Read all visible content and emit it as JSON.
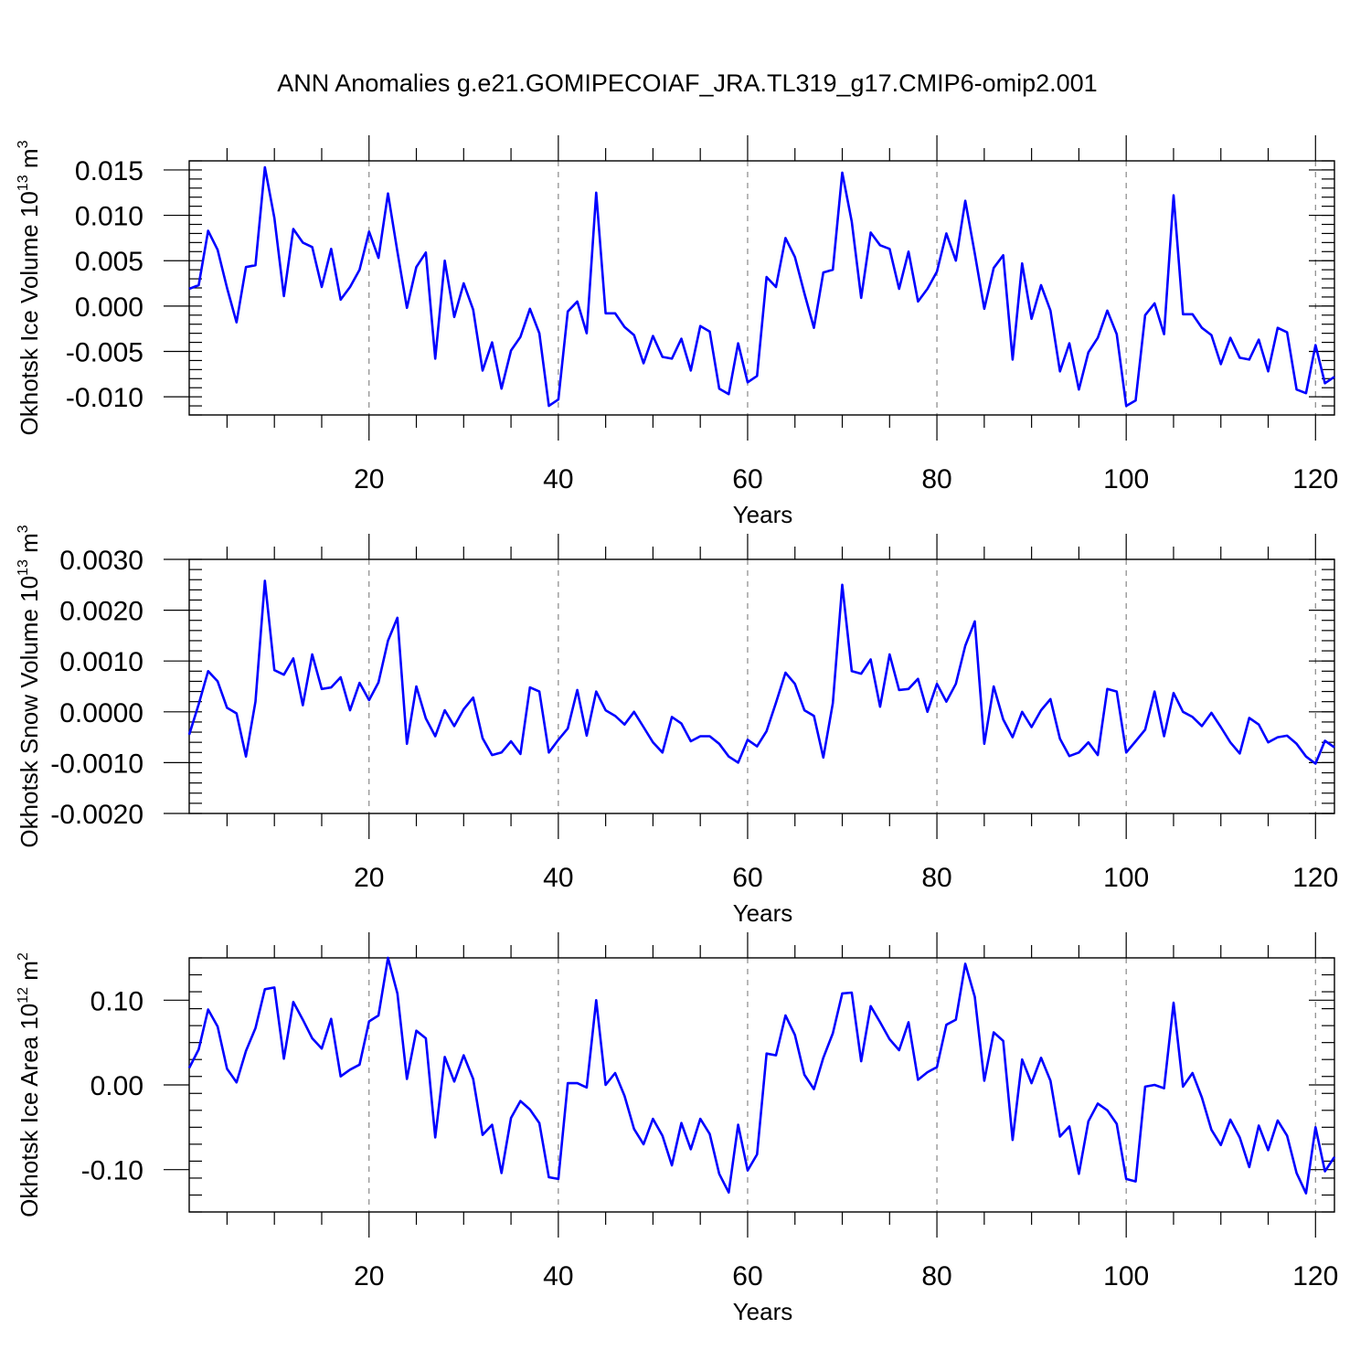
{
  "title": "ANN Anomalies g.e21.GOMIPECOIAF_JRA.TL319_g17.CMIP6-omip2.001",
  "colors": {
    "line": "#0000ff",
    "axis": "#000000",
    "grid": "#888888"
  },
  "chart_data": [
    {
      "type": "line",
      "ylabel": "Okhotsk Ice Volume 10",
      "ylabel_exp": "13",
      "ylabel_unit": " m",
      "ylabel_unit_exp": "3",
      "xlabel": "Years",
      "xlim": [
        1,
        122
      ],
      "ylim": [
        -0.012,
        0.016
      ],
      "x_ticks": [
        20,
        40,
        60,
        80,
        100,
        120
      ],
      "y_ticks": [
        -0.01,
        -0.005,
        0.0,
        0.005,
        0.01,
        0.015
      ],
      "y_tick_labels": [
        "-0.010",
        "-0.005",
        "0.000",
        "0.005",
        "0.010",
        "0.015"
      ],
      "y_minor_step": 0.001,
      "grid": "dashed vertical at major x ticks",
      "series": [
        {
          "values": [
            0.0019,
            0.0023,
            0.0083,
            0.0062,
            0.002,
            -0.0018,
            0.0043,
            0.0045,
            0.0153,
            0.0097,
            0.0011,
            0.0085,
            0.007,
            0.0065,
            0.0021,
            0.0063,
            0.0007,
            0.0021,
            0.004,
            0.0082,
            0.0053,
            0.0124,
            0.006,
            -0.0002,
            0.0043,
            0.0059,
            -0.0058,
            0.005,
            -0.0012,
            0.0025,
            -0.0004,
            -0.0071,
            -0.004,
            -0.0091,
            -0.0049,
            -0.0034,
            -0.0003,
            -0.003,
            -0.011,
            -0.0103,
            -0.0006,
            0.0005,
            -0.003,
            0.0125,
            -0.0008,
            -0.0008,
            -0.0023,
            -0.0032,
            -0.0063,
            -0.0033,
            -0.0056,
            -0.0058,
            -0.0036,
            -0.0071,
            -0.0022,
            -0.0028,
            -0.0091,
            -0.0097,
            -0.0041,
            -0.0084,
            -0.0077,
            0.0032,
            0.0021,
            0.0075,
            0.0054,
            0.0014,
            -0.0024,
            0.0037,
            0.004,
            0.0147,
            0.0093,
            0.0009,
            0.0081,
            0.0067,
            0.0063,
            0.0019,
            0.006,
            0.0005,
            0.0019,
            0.0038,
            0.008,
            0.005,
            0.0116,
            0.0058,
            -0.0003,
            0.0042,
            0.0056,
            -0.0059,
            0.0047,
            -0.0014,
            0.0023,
            -0.0005,
            -0.0072,
            -0.0041,
            -0.0092,
            -0.0051,
            -0.0035,
            -0.0005,
            -0.0031,
            -0.011,
            -0.0104,
            -0.001,
            0.0003,
            -0.0031,
            0.0122,
            -0.0009,
            -0.0009,
            -0.0024,
            -0.0032,
            -0.0064,
            -0.0035,
            -0.0057,
            -0.0059,
            -0.0037,
            -0.0072,
            -0.0024,
            -0.0029,
            -0.0092,
            -0.0096,
            -0.0043,
            -0.0085,
            -0.0078
          ]
        }
      ]
    },
    {
      "type": "line",
      "ylabel": "Okhotsk Snow Volume 10",
      "ylabel_exp": "13",
      "ylabel_unit": " m",
      "ylabel_unit_exp": "3",
      "xlabel": "Years",
      "xlim": [
        1,
        122
      ],
      "ylim": [
        -0.002,
        0.003
      ],
      "x_ticks": [
        20,
        40,
        60,
        80,
        100,
        120
      ],
      "y_ticks": [
        -0.002,
        -0.001,
        0.0,
        0.001,
        0.002,
        0.003
      ],
      "y_tick_labels": [
        "-0.0020",
        "-0.0010",
        "0.0000",
        "0.0010",
        "0.0020",
        "0.0030"
      ],
      "y_minor_step": 0.0002,
      "grid": "dashed vertical at major x ticks",
      "series": [
        {
          "values": [
            -0.00045,
            0.00015,
            0.0008,
            0.0006,
            8e-05,
            -3e-05,
            -0.00088,
            0.0002,
            0.00258,
            0.00082,
            0.00073,
            0.00105,
            0.00013,
            0.00113,
            0.00045,
            0.00048,
            0.00068,
            3e-05,
            0.00057,
            0.00023,
            0.00058,
            0.0014,
            0.00185,
            -0.00063,
            0.0005,
            -0.00013,
            -0.00048,
            3e-05,
            -0.00028,
            5e-05,
            0.00028,
            -0.00052,
            -0.00085,
            -0.0008,
            -0.00058,
            -0.00083,
            0.00048,
            0.0004,
            -0.0008,
            -0.00055,
            -0.00033,
            0.00043,
            -0.00047,
            0.0004,
            3e-05,
            -8e-05,
            -0.00025,
            0.0,
            -0.0003,
            -0.0006,
            -0.0008,
            -0.0001,
            -0.00023,
            -0.00058,
            -0.00048,
            -0.00048,
            -0.00063,
            -0.00088,
            -0.001,
            -0.00055,
            -0.00068,
            -0.00038,
            0.00018,
            0.00077,
            0.00055,
            3e-05,
            -8e-05,
            -0.0009,
            0.00017,
            0.0025,
            0.0008,
            0.00075,
            0.00103,
            0.0001,
            0.00113,
            0.00043,
            0.00045,
            0.00065,
            0.0,
            0.00055,
            0.0002,
            0.00055,
            0.0013,
            0.00178,
            -0.00063,
            0.0005,
            -0.00015,
            -0.0005,
            0.0,
            -0.0003,
            3e-05,
            0.00025,
            -0.00053,
            -0.00087,
            -0.0008,
            -0.0006,
            -0.00085,
            0.00045,
            0.0004,
            -0.0008,
            -0.00058,
            -0.00035,
            0.0004,
            -0.00048,
            0.00037,
            0.0,
            -0.0001,
            -0.00028,
            -2e-05,
            -0.0003,
            -0.0006,
            -0.00082,
            -0.00012,
            -0.00025,
            -0.0006,
            -0.0005,
            -0.00047,
            -0.00063,
            -0.00088,
            -0.00102,
            -0.00057,
            -0.0007
          ]
        }
      ]
    },
    {
      "type": "line",
      "ylabel": "Okhotsk Ice Area 10",
      "ylabel_exp": "12",
      "ylabel_unit": " m",
      "ylabel_unit_exp": "2",
      "xlabel": "Years",
      "xlim": [
        1,
        122
      ],
      "ylim": [
        -0.15,
        0.15
      ],
      "x_ticks": [
        20,
        40,
        60,
        80,
        100,
        120
      ],
      "y_ticks": [
        -0.1,
        0.0,
        0.1
      ],
      "y_tick_labels": [
        "-0.10",
        "0.00",
        "0.10"
      ],
      "y_minor_step": 0.02,
      "grid": "dashed vertical at major x ticks",
      "series": [
        {
          "values": [
            0.02,
            0.042,
            0.089,
            0.069,
            0.019,
            0.003,
            0.04,
            0.067,
            0.113,
            0.115,
            0.031,
            0.098,
            0.077,
            0.055,
            0.043,
            0.078,
            0.01,
            0.018,
            0.024,
            0.075,
            0.082,
            0.15,
            0.108,
            0.007,
            0.064,
            0.055,
            -0.062,
            0.033,
            0.004,
            0.035,
            0.007,
            -0.059,
            -0.047,
            -0.104,
            -0.039,
            -0.019,
            -0.029,
            -0.045,
            -0.109,
            -0.111,
            0.002,
            0.002,
            -0.003,
            0.1,
            0.0,
            0.014,
            -0.013,
            -0.052,
            -0.07,
            -0.04,
            -0.06,
            -0.095,
            -0.045,
            -0.076,
            -0.04,
            -0.058,
            -0.105,
            -0.127,
            -0.047,
            -0.101,
            -0.082,
            0.037,
            0.035,
            0.082,
            0.059,
            0.012,
            -0.005,
            0.032,
            0.061,
            0.108,
            0.109,
            0.028,
            0.093,
            0.074,
            0.054,
            0.041,
            0.074,
            0.006,
            0.015,
            0.021,
            0.071,
            0.077,
            0.143,
            0.104,
            0.005,
            0.062,
            0.052,
            -0.065,
            0.03,
            0.002,
            0.032,
            0.005,
            -0.061,
            -0.049,
            -0.105,
            -0.043,
            -0.022,
            -0.03,
            -0.046,
            -0.111,
            -0.114,
            -0.002,
            0.0,
            -0.004,
            0.097,
            -0.002,
            0.014,
            -0.015,
            -0.053,
            -0.071,
            -0.041,
            -0.062,
            -0.097,
            -0.048,
            -0.077,
            -0.042,
            -0.06,
            -0.104,
            -0.128,
            -0.05,
            -0.102,
            -0.085
          ]
        }
      ]
    }
  ]
}
